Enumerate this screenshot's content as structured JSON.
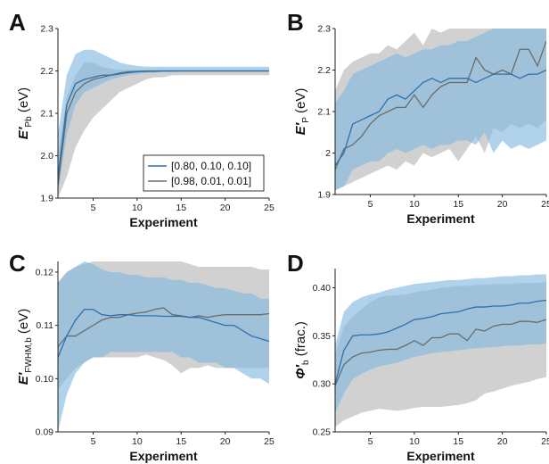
{
  "colors": {
    "series_a_line": "#2e6fad",
    "series_a_band": "#7fb8df",
    "series_b_line": "#6b6b6b",
    "series_b_band": "#b5b5b5",
    "axis": "#222222"
  },
  "legend": {
    "entries": [
      "[0.80, 0.10, 0.10]",
      "[0.98, 0.01, 0.01]"
    ],
    "placement": "lower-right of panel A"
  },
  "chart_data": [
    {
      "panel": "A",
      "type": "line",
      "xlabel": "Experiment",
      "ylabel_main": "E′",
      "ylabel_sub": "Pb",
      "ylabel_unit": "(eV)",
      "xlim": [
        1,
        25
      ],
      "ylim": [
        1.9,
        2.3
      ],
      "xticks": [
        5,
        10,
        15,
        20,
        25
      ],
      "yticks": [
        1.9,
        2.0,
        2.1,
        2.2,
        2.3
      ],
      "ytick_labels": [
        "1.9",
        "2.0",
        "2.1",
        "2.2",
        "2.3"
      ],
      "x": [
        1,
        2,
        3,
        4,
        5,
        6,
        7,
        8,
        9,
        10,
        11,
        12,
        13,
        14,
        15,
        16,
        17,
        18,
        19,
        20,
        21,
        22,
        23,
        24,
        25
      ],
      "series": [
        {
          "name": "[0.80, 0.10, 0.10]",
          "values": [
            1.95,
            2.12,
            2.17,
            2.18,
            2.185,
            2.19,
            2.19,
            2.193,
            2.196,
            2.198,
            2.199,
            2.199,
            2.2,
            2.2,
            2.2,
            2.2,
            2.2,
            2.2,
            2.2,
            2.2,
            2.2,
            2.2,
            2.2,
            2.2,
            2.2
          ],
          "lower": [
            1.91,
            2.05,
            2.12,
            2.15,
            2.16,
            2.17,
            2.18,
            2.185,
            2.19,
            2.193,
            2.195,
            2.196,
            2.197,
            2.197,
            2.198,
            2.198,
            2.198,
            2.198,
            2.198,
            2.198,
            2.198,
            2.198,
            2.198,
            2.198,
            2.198
          ],
          "upper": [
            2.05,
            2.19,
            2.24,
            2.25,
            2.25,
            2.24,
            2.23,
            2.22,
            2.215,
            2.212,
            2.21,
            2.21,
            2.21,
            2.21,
            2.21,
            2.21,
            2.21,
            2.21,
            2.21,
            2.21,
            2.21,
            2.21,
            2.21,
            2.21,
            2.21
          ]
        },
        {
          "name": "[0.98, 0.01, 0.01]",
          "values": [
            1.93,
            2.1,
            2.15,
            2.17,
            2.18,
            2.185,
            2.19,
            2.195,
            2.198,
            2.199,
            2.2,
            2.2,
            2.2,
            2.2,
            2.2,
            2.2,
            2.2,
            2.2,
            2.2,
            2.2,
            2.2,
            2.2,
            2.2,
            2.2,
            2.2
          ],
          "lower": [
            1.9,
            1.95,
            2.02,
            2.06,
            2.09,
            2.11,
            2.13,
            2.15,
            2.16,
            2.17,
            2.18,
            2.185,
            2.185,
            2.19,
            2.19,
            2.19,
            2.19,
            2.19,
            2.19,
            2.19,
            2.19,
            2.19,
            2.19,
            2.19,
            2.19
          ],
          "upper": [
            2.0,
            2.14,
            2.19,
            2.22,
            2.22,
            2.21,
            2.205,
            2.203,
            2.202,
            2.202,
            2.202,
            2.202,
            2.202,
            2.202,
            2.202,
            2.202,
            2.202,
            2.202,
            2.202,
            2.202,
            2.202,
            2.202,
            2.202,
            2.202,
            2.202
          ]
        }
      ]
    },
    {
      "panel": "B",
      "type": "line",
      "xlabel": "Experiment",
      "ylabel_main": "E′",
      "ylabel_sub": "P",
      "ylabel_unit": "(eV)",
      "xlim": [
        1,
        25
      ],
      "ylim": [
        1.9,
        2.3
      ],
      "xticks": [
        5,
        10,
        15,
        20,
        25
      ],
      "yticks": [
        1.9,
        2.0,
        2.1,
        2.2,
        2.3
      ],
      "ytick_labels": [
        "1.9",
        "2",
        "2.1",
        "2.2",
        "2.3"
      ],
      "x": [
        1,
        2,
        3,
        4,
        5,
        6,
        7,
        8,
        9,
        10,
        11,
        12,
        13,
        14,
        15,
        16,
        17,
        18,
        19,
        20,
        21,
        22,
        23,
        24,
        25
      ],
      "series": [
        {
          "name": "[0.80, 0.10, 0.10]",
          "values": [
            1.97,
            2.0,
            2.07,
            2.08,
            2.09,
            2.1,
            2.13,
            2.14,
            2.13,
            2.15,
            2.17,
            2.18,
            2.17,
            2.18,
            2.18,
            2.18,
            2.17,
            2.18,
            2.19,
            2.19,
            2.19,
            2.18,
            2.19,
            2.19,
            2.2
          ],
          "lower": [
            1.91,
            1.92,
            1.96,
            1.97,
            1.98,
            1.98,
            2.0,
            2.01,
            2.0,
            2.01,
            2.02,
            2.01,
            2.02,
            2.02,
            2.03,
            2.03,
            2.02,
            2.05,
            2.0,
            2.03,
            2.01,
            2.02,
            2.01,
            2.02,
            2.03
          ],
          "upper": [
            2.12,
            2.15,
            2.19,
            2.2,
            2.21,
            2.22,
            2.23,
            2.24,
            2.23,
            2.24,
            2.25,
            2.25,
            2.26,
            2.26,
            2.27,
            2.27,
            2.28,
            2.29,
            2.3,
            2.3,
            2.3,
            2.3,
            2.3,
            2.3,
            2.3
          ]
        },
        {
          "name": "[0.98, 0.01, 0.01]",
          "values": [
            1.96,
            2.01,
            2.02,
            2.04,
            2.07,
            2.09,
            2.1,
            2.11,
            2.11,
            2.14,
            2.11,
            2.14,
            2.16,
            2.17,
            2.17,
            2.17,
            2.23,
            2.2,
            2.19,
            2.2,
            2.19,
            2.25,
            2.25,
            2.21,
            2.27
          ],
          "lower": [
            1.91,
            1.92,
            1.93,
            1.94,
            1.95,
            1.96,
            1.97,
            1.96,
            1.98,
            1.97,
            2.0,
            1.99,
            2.0,
            2.01,
            1.98,
            2.01,
            2.04,
            2.0,
            2.06,
            2.05,
            2.07,
            2.06,
            2.07,
            2.06,
            2.08
          ],
          "upper": [
            2.15,
            2.2,
            2.22,
            2.23,
            2.24,
            2.24,
            2.26,
            2.25,
            2.27,
            2.29,
            2.26,
            2.3,
            2.29,
            2.3,
            2.3,
            2.3,
            2.3,
            2.3,
            2.3,
            2.3,
            2.3,
            2.3,
            2.3,
            2.3,
            2.3
          ]
        }
      ]
    },
    {
      "panel": "C",
      "type": "line",
      "xlabel": "Experiment",
      "ylabel_main": "E′",
      "ylabel_sub": "FWHM,b",
      "ylabel_unit": "(eV)",
      "xlim": [
        1,
        25
      ],
      "ylim": [
        0.09,
        0.122
      ],
      "xticks": [
        5,
        10,
        15,
        20,
        25
      ],
      "yticks": [
        0.09,
        0.1,
        0.11,
        0.12
      ],
      "ytick_labels": [
        "0.09",
        "0.10",
        "0.11",
        "0.12"
      ],
      "x": [
        1,
        2,
        3,
        4,
        5,
        6,
        7,
        8,
        9,
        10,
        11,
        12,
        13,
        14,
        15,
        16,
        17,
        18,
        19,
        20,
        21,
        22,
        23,
        24,
        25
      ],
      "series": [
        {
          "name": "[0.80, 0.10, 0.10]",
          "values": [
            0.104,
            0.108,
            0.111,
            0.113,
            0.113,
            0.112,
            0.1118,
            0.112,
            0.112,
            0.1118,
            0.1118,
            0.1118,
            0.1117,
            0.1117,
            0.1117,
            0.1115,
            0.1115,
            0.111,
            0.1105,
            0.11,
            0.11,
            0.109,
            0.108,
            0.1075,
            0.107
          ],
          "lower": [
            0.09,
            0.097,
            0.101,
            0.103,
            0.104,
            0.104,
            0.105,
            0.105,
            0.105,
            0.105,
            0.105,
            0.105,
            0.105,
            0.105,
            0.104,
            0.104,
            0.103,
            0.103,
            0.103,
            0.102,
            0.102,
            0.101,
            0.1,
            0.1,
            0.099
          ],
          "upper": [
            0.118,
            0.12,
            0.121,
            0.122,
            0.1215,
            0.1205,
            0.12,
            0.12,
            0.1195,
            0.1195,
            0.119,
            0.119,
            0.119,
            0.1185,
            0.1185,
            0.118,
            0.118,
            0.1175,
            0.117,
            0.117,
            0.1165,
            0.116,
            0.116,
            0.115,
            0.115
          ]
        },
        {
          "name": "[0.98, 0.01, 0.01]",
          "values": [
            0.106,
            0.108,
            0.108,
            0.109,
            0.11,
            0.111,
            0.1115,
            0.1115,
            0.112,
            0.1123,
            0.1125,
            0.113,
            0.1133,
            0.112,
            0.1118,
            0.1115,
            0.1118,
            0.1115,
            0.1118,
            0.112,
            0.112,
            0.112,
            0.112,
            0.112,
            0.1122
          ],
          "lower": [
            0.098,
            0.1,
            0.102,
            0.103,
            0.104,
            0.104,
            0.104,
            0.104,
            0.104,
            0.104,
            0.1045,
            0.104,
            0.1035,
            0.1025,
            0.101,
            0.102,
            0.102,
            0.1025,
            0.102,
            0.102,
            0.102,
            0.102,
            0.102,
            0.102,
            0.102
          ],
          "upper": [
            0.118,
            0.12,
            0.121,
            0.1215,
            0.122,
            0.122,
            0.122,
            0.122,
            0.122,
            0.122,
            0.122,
            0.122,
            0.122,
            0.122,
            0.122,
            0.1215,
            0.121,
            0.121,
            0.121,
            0.121,
            0.121,
            0.121,
            0.121,
            0.1205,
            0.1205
          ]
        }
      ]
    },
    {
      "panel": "D",
      "type": "line",
      "xlabel": "Experiment",
      "ylabel_main": "Φ′",
      "ylabel_sub": "b",
      "ylabel_unit": "(frac.)",
      "xlim": [
        1,
        25
      ],
      "ylim": [
        0.25,
        0.42
      ],
      "xticks": [
        5,
        10,
        15,
        20,
        25
      ],
      "yticks": [
        0.25,
        0.3,
        0.35,
        0.4
      ],
      "ytick_labels": [
        "0.25",
        "0.30",
        "0.35",
        "0.40"
      ],
      "x": [
        1,
        2,
        3,
        4,
        5,
        6,
        7,
        8,
        9,
        10,
        11,
        12,
        13,
        14,
        15,
        16,
        17,
        18,
        19,
        20,
        21,
        22,
        23,
        24,
        25
      ],
      "series": [
        {
          "name": "[0.80, 0.10, 0.10]",
          "values": [
            0.3,
            0.335,
            0.35,
            0.351,
            0.351,
            0.352,
            0.354,
            0.358,
            0.362,
            0.367,
            0.368,
            0.37,
            0.373,
            0.374,
            0.375,
            0.378,
            0.38,
            0.38,
            0.381,
            0.381,
            0.382,
            0.384,
            0.384,
            0.386,
            0.387
          ],
          "lower": [
            0.27,
            0.29,
            0.305,
            0.31,
            0.315,
            0.318,
            0.32,
            0.322,
            0.325,
            0.328,
            0.33,
            0.332,
            0.333,
            0.334,
            0.335,
            0.336,
            0.337,
            0.338,
            0.338,
            0.339,
            0.34,
            0.34,
            0.341,
            0.341,
            0.342
          ],
          "upper": [
            0.34,
            0.375,
            0.385,
            0.39,
            0.393,
            0.395,
            0.398,
            0.4,
            0.402,
            0.404,
            0.405,
            0.406,
            0.407,
            0.408,
            0.408,
            0.409,
            0.41,
            0.41,
            0.411,
            0.412,
            0.412,
            0.413,
            0.413,
            0.414,
            0.414
          ]
        },
        {
          "name": "[0.98, 0.01, 0.01]",
          "values": [
            0.298,
            0.32,
            0.328,
            0.332,
            0.333,
            0.335,
            0.336,
            0.336,
            0.34,
            0.345,
            0.34,
            0.348,
            0.348,
            0.352,
            0.352,
            0.345,
            0.357,
            0.355,
            0.36,
            0.362,
            0.362,
            0.365,
            0.365,
            0.364,
            0.367
          ],
          "lower": [
            0.255,
            0.262,
            0.266,
            0.27,
            0.272,
            0.274,
            0.273,
            0.272,
            0.273,
            0.275,
            0.276,
            0.276,
            0.276,
            0.277,
            0.278,
            0.28,
            0.283,
            0.29,
            0.292,
            0.295,
            0.298,
            0.3,
            0.302,
            0.305,
            0.307
          ],
          "upper": [
            0.33,
            0.36,
            0.37,
            0.378,
            0.385,
            0.39,
            0.392,
            0.392,
            0.393,
            0.395,
            0.397,
            0.398,
            0.4,
            0.401,
            0.402,
            0.402,
            0.403,
            0.403,
            0.404,
            0.404,
            0.404,
            0.405,
            0.405,
            0.405,
            0.406
          ]
        }
      ]
    }
  ]
}
